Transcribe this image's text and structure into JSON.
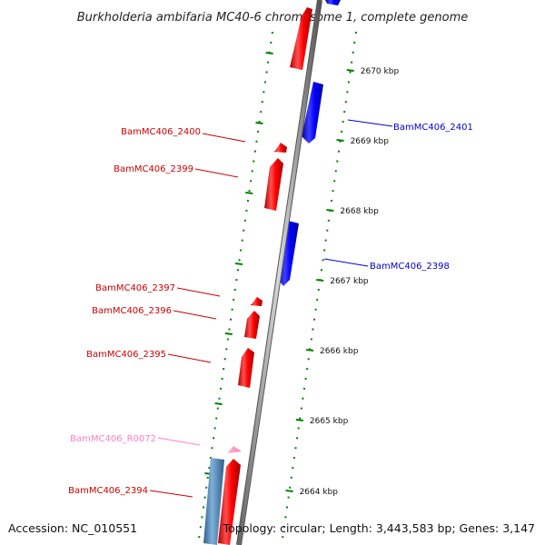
{
  "title": "Burkholderia ambifaria MC40-6 chromosome 1, complete genome",
  "footer": {
    "accession": "Accession: NC_010551",
    "topology": "Topology: circular; Length: 3,443,583 bp; Genes: 3,147"
  },
  "colors": {
    "forward_gene": "#ff0000",
    "reverse_gene": "#0000ff",
    "rna_gene": "#ff99cc",
    "pseudo_gene": "#4682b4",
    "tick": "#008000",
    "axis": "#888888"
  },
  "scale": {
    "unit": "kbp",
    "labels": [
      "2670 kbp",
      "2669 kbp",
      "2668 kbp",
      "2667 kbp",
      "2666 kbp",
      "2665 kbp",
      "2664 kbp"
    ]
  },
  "genes": [
    {
      "label": "BamMC406_2401",
      "strand": "reverse",
      "type": "cds"
    },
    {
      "label": "BamMC406_2400",
      "strand": "forward",
      "type": "cds"
    },
    {
      "label": "BamMC406_2399",
      "strand": "forward",
      "type": "cds"
    },
    {
      "label": "BamMC406_2398",
      "strand": "reverse",
      "type": "cds"
    },
    {
      "label": "BamMC406_2397",
      "strand": "forward",
      "type": "cds"
    },
    {
      "label": "BamMC406_2396",
      "strand": "forward",
      "type": "cds"
    },
    {
      "label": "BamMC406_2395",
      "strand": "forward",
      "type": "cds"
    },
    {
      "label": "BamMC406_R0072",
      "strand": "forward",
      "type": "rna"
    },
    {
      "label": "BamMC406_2394",
      "strand": "forward",
      "type": "cds"
    }
  ]
}
